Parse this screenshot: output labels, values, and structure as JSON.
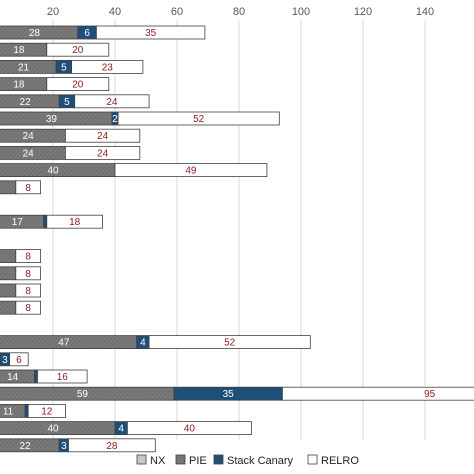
{
  "chart_data": {
    "type": "bar",
    "orientation": "horizontal",
    "stacked": true,
    "xlim": [
      -10,
      150
    ],
    "x_ticks": [
      "20",
      "40",
      "60",
      "80",
      "100",
      "120",
      "140"
    ],
    "grid": true,
    "legend_position": "bottom",
    "rows": [
      {
        "nx": 28,
        "pie": 0,
        "canary": 6,
        "relro": 35
      },
      {
        "nx": 18,
        "pie": 0,
        "canary": 0,
        "relro": 20
      },
      {
        "nx": 21,
        "pie": 0,
        "canary": 5,
        "relro": 23
      },
      {
        "nx": 18,
        "pie": 0,
        "canary": 0,
        "relro": 20
      },
      {
        "nx": 22,
        "pie": 0,
        "canary": 5,
        "relro": 24
      },
      {
        "nx": 39,
        "pie": 0,
        "canary": 2,
        "relro": 52
      },
      {
        "nx": 24,
        "pie": 0,
        "canary": 0,
        "relro": 24
      },
      {
        "nx": 24,
        "pie": 0,
        "canary": 0,
        "relro": 24
      },
      {
        "nx": 40,
        "pie": 0,
        "canary": 0,
        "relro": 49
      },
      {
        "nx": 8,
        "pie": 0,
        "canary": 0,
        "relro": 8
      },
      {
        "nx": 0,
        "pie": 0,
        "canary": 0,
        "relro": 0
      },
      {
        "nx": 17,
        "pie": 0,
        "canary": 1,
        "relro": 18
      },
      {
        "nx": 0,
        "pie": 0,
        "canary": 0,
        "relro": 0
      },
      {
        "nx": 8,
        "pie": 0,
        "canary": 0,
        "relro": 8
      },
      {
        "nx": 8,
        "pie": 0,
        "canary": 0,
        "relro": 8
      },
      {
        "nx": 8,
        "pie": 0,
        "canary": 0,
        "relro": 8
      },
      {
        "nx": 8,
        "pie": 0,
        "canary": 0,
        "relro": 8
      },
      {
        "nx": 0,
        "pie": 0,
        "canary": 0,
        "relro": 0
      },
      {
        "nx": 47,
        "pie": 0,
        "canary": 4,
        "relro": 52
      },
      {
        "nx": 3,
        "pie": 0,
        "canary": 3,
        "relro": 6
      },
      {
        "nx": 14,
        "pie": 0,
        "canary": 1,
        "relro": 16
      },
      {
        "nx": 59,
        "pie": 0,
        "canary": 35,
        "relro": 95
      },
      {
        "nx": 11,
        "pie": 0,
        "canary": 1,
        "relro": 12
      },
      {
        "nx": 40,
        "pie": 0,
        "canary": 4,
        "relro": 40
      },
      {
        "nx": 22,
        "pie": 0,
        "canary": 3,
        "relro": 28
      }
    ],
    "series": [
      {
        "key": "nx",
        "name": "NX",
        "color": "#c8c8c8"
      },
      {
        "key": "pie",
        "name": "PIE",
        "color": "#808080"
      },
      {
        "key": "canary",
        "name": "Stack Canary",
        "color": "#1f4e79"
      },
      {
        "key": "relro",
        "name": "RELRO",
        "color": "#ffffff"
      }
    ],
    "label_colors": {
      "nx": "#ffffff",
      "canary": "#ffffff",
      "relro": "#8b1a1a"
    }
  }
}
